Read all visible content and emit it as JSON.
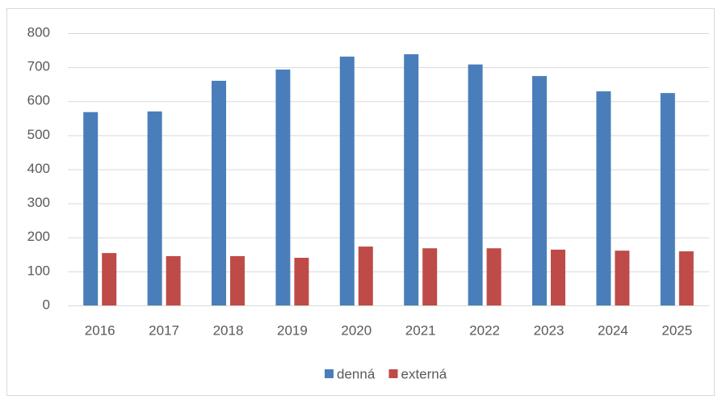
{
  "chart_data": {
    "type": "bar",
    "categories": [
      "2016",
      "2017",
      "2018",
      "2019",
      "2020",
      "2021",
      "2022",
      "2023",
      "2024",
      "2025"
    ],
    "series": [
      {
        "name": "denná",
        "color": "#4a7ebb",
        "values": [
          568,
          570,
          660,
          693,
          731,
          738,
          708,
          674,
          629,
          624
        ]
      },
      {
        "name": "externá",
        "color": "#be4b48",
        "values": [
          154,
          145,
          145,
          140,
          173,
          168,
          168,
          164,
          161,
          159
        ]
      }
    ],
    "ylim": [
      0,
      800
    ],
    "yticks": [
      0,
      100,
      200,
      300,
      400,
      500,
      600,
      700,
      800
    ],
    "grid": true,
    "legend": "bottom"
  }
}
